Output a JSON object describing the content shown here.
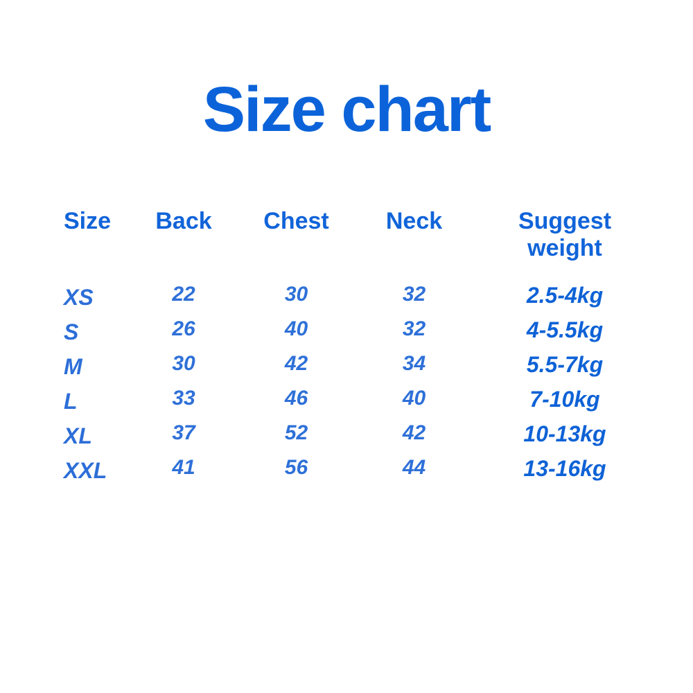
{
  "title": "Size chart",
  "colors": {
    "background": "#ffffff",
    "title_blue": "#0c63d9",
    "header_blue": "#1164d9",
    "value_blue": "#2e70d8",
    "weight_blue": "#0e62d6"
  },
  "table": {
    "headers": [
      "Size",
      "Back",
      "Chest",
      "Neck",
      "Suggest weight"
    ],
    "rows": [
      {
        "size": "XS",
        "back": "22",
        "chest": "30",
        "neck": "32",
        "weight": "2.5-4kg"
      },
      {
        "size": "S",
        "back": "26",
        "chest": "40",
        "neck": "32",
        "weight": "4-5.5kg"
      },
      {
        "size": "M",
        "back": "30",
        "chest": "42",
        "neck": "34",
        "weight": "5.5-7kg"
      },
      {
        "size": "L",
        "back": "33",
        "chest": "46",
        "neck": "40",
        "weight": "7-10kg"
      },
      {
        "size": "XL",
        "back": "37",
        "chest": "52",
        "neck": "42",
        "weight": "10-13kg"
      },
      {
        "size": "XXL",
        "back": "41",
        "chest": "56",
        "neck": "44",
        "weight": "13-16kg"
      }
    ]
  },
  "chart_data": {
    "type": "table",
    "title": "Size chart",
    "columns": [
      "Size",
      "Back",
      "Chest",
      "Neck",
      "Suggest weight"
    ],
    "rows": [
      [
        "XS",
        "22",
        "30",
        "32",
        "2.5-4kg"
      ],
      [
        "S",
        "26",
        "40",
        "32",
        "4-5.5kg"
      ],
      [
        "M",
        "30",
        "42",
        "34",
        "5.5-7kg"
      ],
      [
        "L",
        "33",
        "46",
        "40",
        "7-10kg"
      ],
      [
        "XL",
        "37",
        "52",
        "42",
        "10-13kg"
      ],
      [
        "XXL",
        "41",
        "56",
        "44",
        "13-16kg"
      ]
    ]
  }
}
